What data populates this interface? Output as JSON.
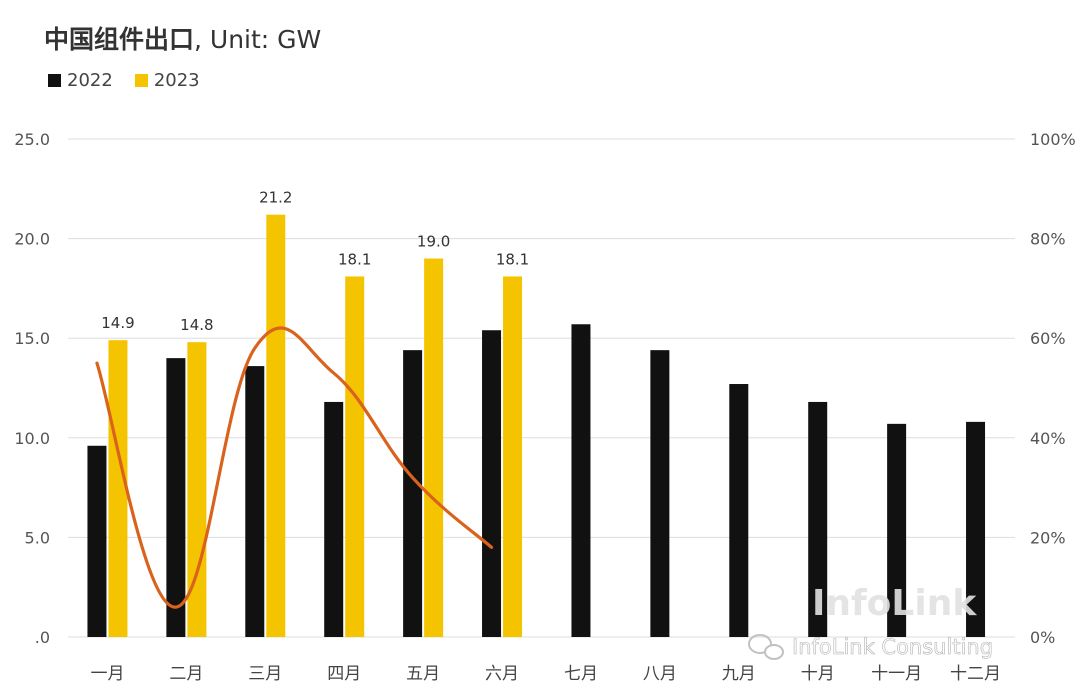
{
  "title_main": "中国组件出口",
  "title_rest": ", Unit: GW",
  "watermark_logo": "InfoLink",
  "watermark_text": "InfoLink Consulting",
  "colors": {
    "s2022": "#111111",
    "s2023": "#f5c400",
    "line": "#d9631c",
    "grid": "#dddddd"
  },
  "chart_data": {
    "type": "bar",
    "categories": [
      "一月",
      "二月",
      "三月",
      "四月",
      "五月",
      "六月",
      "七月",
      "八月",
      "九月",
      "十月",
      "十一月",
      "十二月"
    ],
    "series": [
      {
        "name": "2022",
        "values": [
          9.6,
          14.0,
          13.6,
          11.8,
          14.4,
          15.4,
          15.7,
          14.4,
          12.7,
          11.8,
          10.7,
          10.8
        ]
      },
      {
        "name": "2023",
        "values": [
          14.9,
          14.8,
          21.2,
          18.1,
          19.0,
          18.1,
          null,
          null,
          null,
          null,
          null,
          null
        ],
        "data_labels": [
          "14.9",
          "14.8",
          "21.2",
          "18.1",
          "19.0",
          "18.1"
        ]
      },
      {
        "type": "line",
        "axis": "right",
        "values_pct": [
          55,
          6,
          58,
          53,
          32,
          18
        ]
      }
    ],
    "y_ticks": [
      ".0",
      "5.0",
      "10.0",
      "15.0",
      "20.0",
      "25.0"
    ],
    "ylim": [
      0,
      25
    ],
    "y2_ticks": [
      "0%",
      "20%",
      "40%",
      "60%",
      "80%",
      "100%"
    ],
    "y2lim": [
      0,
      100
    ],
    "grid": true,
    "legend_position": "top-left"
  }
}
